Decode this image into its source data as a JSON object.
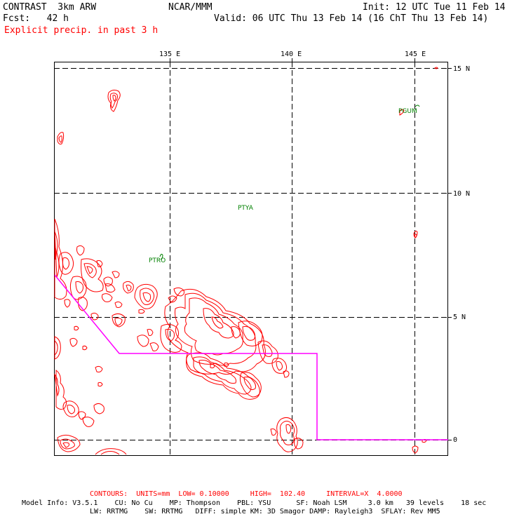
{
  "header": {
    "model": "CONTRAST  3km ARW",
    "org": "NCAR/MMM",
    "init": "Init: 12 UTC Tue 11 Feb 14",
    "fcst": "Fcst:   42 h",
    "valid": "Valid: 06 UTC Thu 13 Feb 14 (16 ChT Thu 13 Feb 14)",
    "field": "Explicit precip. in past 3 h"
  },
  "axes": {
    "lon_labels": [
      "135 E",
      "140 E",
      "145 E"
    ],
    "lat_labels": [
      "15 N",
      "10 N",
      "5 N",
      "0"
    ]
  },
  "stations": [
    "PGUM",
    "PTYA",
    "PTRO"
  ],
  "footer": {
    "contours": "CONTOURS:  UNITS=mm  LOW= 0.10000     HIGH=  102.40     INTERVAL=X  4.0000",
    "model_info_1": "Model Info: V3.5.1    CU: No Cu    MP: Thompson    PBL: YSU      SF: Noah LSM     3.0 km   39 levels    18 sec",
    "model_info_2": "LW: RRTMG    SW: RRTMG   DIFF: simple KM: 3D Smagor DAMP: Rayleigh3  SFLAY: Rev MM5"
  },
  "colors": {
    "contour": "#ff0000",
    "track": "#ff00ff",
    "station": "#008000",
    "grid": "#000000"
  }
}
